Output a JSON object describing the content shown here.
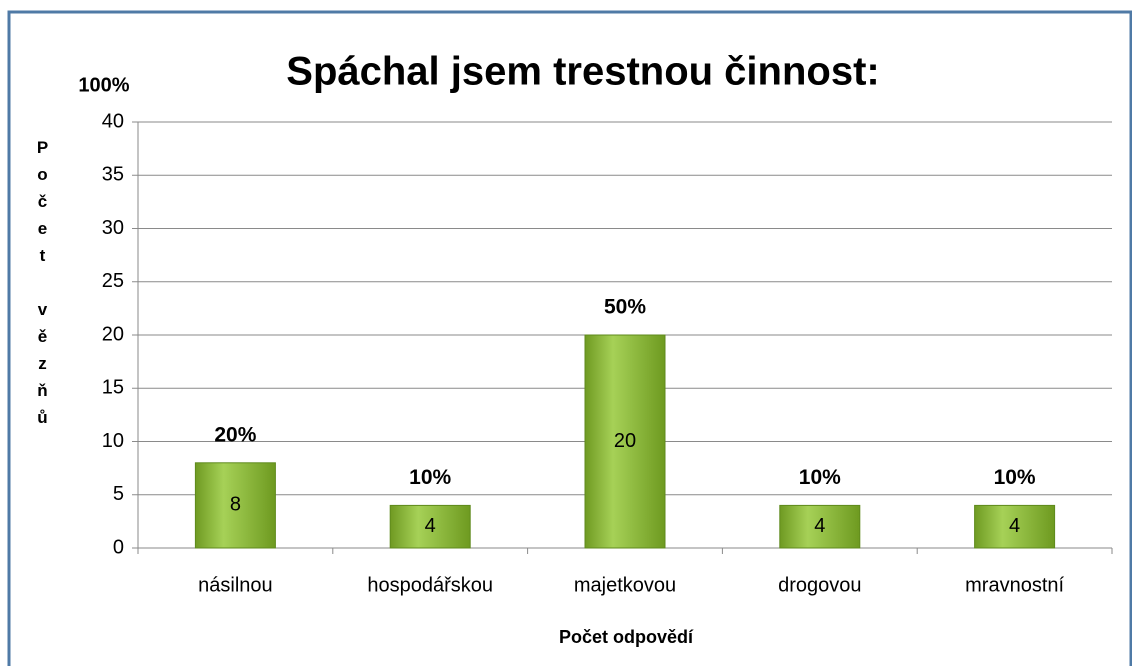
{
  "chart_data": {
    "type": "bar",
    "title": "Spáchal jsem trestnou činnost:",
    "annotation": "100%",
    "ylabel": "Počet vězňů",
    "xlabel": "Počet odpovědí",
    "categories": [
      "násilnou",
      "hospodářskou",
      "majetkovou",
      "drogovou",
      "mravnostní"
    ],
    "values": [
      8,
      4,
      20,
      4,
      4
    ],
    "percent_labels": [
      "20%",
      "10%",
      "50%",
      "10%",
      "10%"
    ],
    "color": "#8cbb34",
    "ylim": [
      0,
      40
    ],
    "yticks": [
      0,
      5,
      10,
      15,
      20,
      25,
      30,
      35,
      40
    ],
    "grid": true
  }
}
